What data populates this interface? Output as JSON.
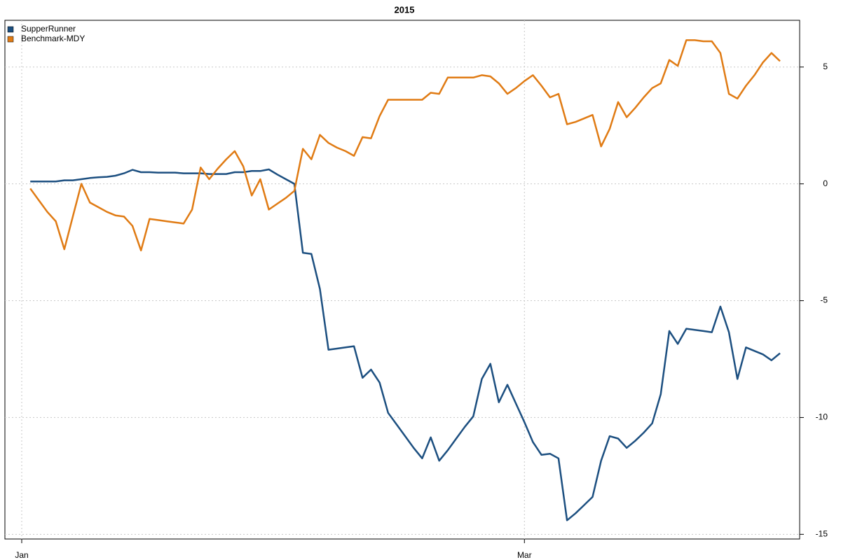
{
  "chart_data": {
    "type": "line",
    "title": "2015",
    "categories": [
      "Jan",
      null,
      null,
      null,
      null,
      null,
      null,
      null,
      null,
      null,
      null,
      null,
      null,
      null,
      null,
      null,
      null,
      null,
      null,
      null,
      null,
      null,
      null,
      null,
      null,
      null,
      null,
      null,
      null,
      null,
      null,
      null,
      null,
      null,
      null,
      null,
      null,
      null,
      null,
      null,
      null,
      null,
      null,
      null,
      null,
      null,
      null,
      null,
      null,
      null,
      null,
      null,
      null,
      null,
      null,
      null,
      null,
      null,
      null,
      "Mar",
      null,
      null,
      null,
      null,
      null,
      null,
      null,
      null,
      null,
      null,
      null,
      null,
      null,
      null,
      null,
      null,
      null,
      null,
      null,
      null,
      null,
      null,
      null,
      null,
      null,
      null,
      null,
      null,
      null,
      null
    ],
    "series": [
      {
        "name": "SupperRunner",
        "color": "#1c4f80",
        "values": [
          null,
          0.1,
          0.1,
          0.1,
          0.1,
          0.15,
          0.15,
          0.2,
          0.25,
          0.28,
          0.3,
          0.35,
          0.45,
          0.6,
          0.5,
          0.5,
          0.48,
          0.48,
          0.48,
          0.45,
          0.45,
          0.45,
          0.42,
          0.42,
          0.42,
          0.5,
          0.5,
          0.55,
          0.55,
          0.62,
          0.4,
          0.2,
          0,
          -2.95,
          -3.0,
          -4.5,
          -7.1,
          -7.05,
          -7.0,
          -6.95,
          -8.3,
          -7.95,
          -8.5,
          -9.8,
          -10.3,
          -10.8,
          -11.3,
          -11.75,
          -10.85,
          -11.85,
          -11.4,
          -10.9,
          -10.4,
          -9.95,
          -8.35,
          -7.7,
          -9.35,
          -8.6,
          -9.4,
          -10.2,
          -11.05,
          -11.6,
          -11.55,
          -11.75,
          -14.4,
          -14.1,
          -13.75,
          -13.4,
          -11.85,
          -10.8,
          -10.9,
          -11.3,
          -11.0,
          -10.65,
          -10.25,
          -9.0,
          -6.3,
          -6.85,
          -6.2,
          -6.25,
          -6.3,
          -6.35,
          -5.25,
          -6.35,
          -8.35,
          -7.0,
          -7.15,
          -7.3,
          -7.55,
          -7.25
        ]
      },
      {
        "name": "Benchmark-MDY",
        "color": "#e07b14",
        "values": [
          null,
          -0.2,
          -0.7,
          -1.2,
          -1.6,
          -2.8,
          -1.4,
          0,
          -0.8,
          -1.0,
          -1.2,
          -1.35,
          -1.4,
          -1.8,
          -2.85,
          -1.5,
          -1.55,
          -1.6,
          -1.65,
          -1.7,
          -1.1,
          0.7,
          0.2,
          0.65,
          1.05,
          1.4,
          0.75,
          -0.5,
          0.2,
          -1.1,
          -0.85,
          -0.6,
          -0.3,
          1.5,
          1.05,
          2.1,
          1.75,
          1.55,
          1.4,
          1.2,
          2.0,
          1.95,
          2.9,
          3.6,
          3.6,
          3.6,
          3.6,
          3.6,
          3.9,
          3.85,
          4.55,
          4.55,
          4.55,
          4.55,
          4.65,
          4.6,
          4.3,
          3.85,
          4.1,
          4.4,
          4.65,
          4.2,
          3.7,
          3.85,
          2.55,
          2.65,
          2.8,
          2.95,
          1.6,
          2.35,
          3.5,
          2.85,
          3.25,
          3.7,
          4.1,
          4.3,
          5.3,
          5.05,
          6.15,
          6.15,
          6.1,
          6.1,
          5.6,
          3.85,
          3.65,
          4.2,
          4.65,
          5.2,
          5.6,
          5.25
        ]
      }
    ],
    "ylim": [
      -15.2,
      7
    ],
    "yticks": [
      -15,
      -10,
      -5,
      0,
      5
    ],
    "grid": true,
    "legend": "top-left"
  }
}
